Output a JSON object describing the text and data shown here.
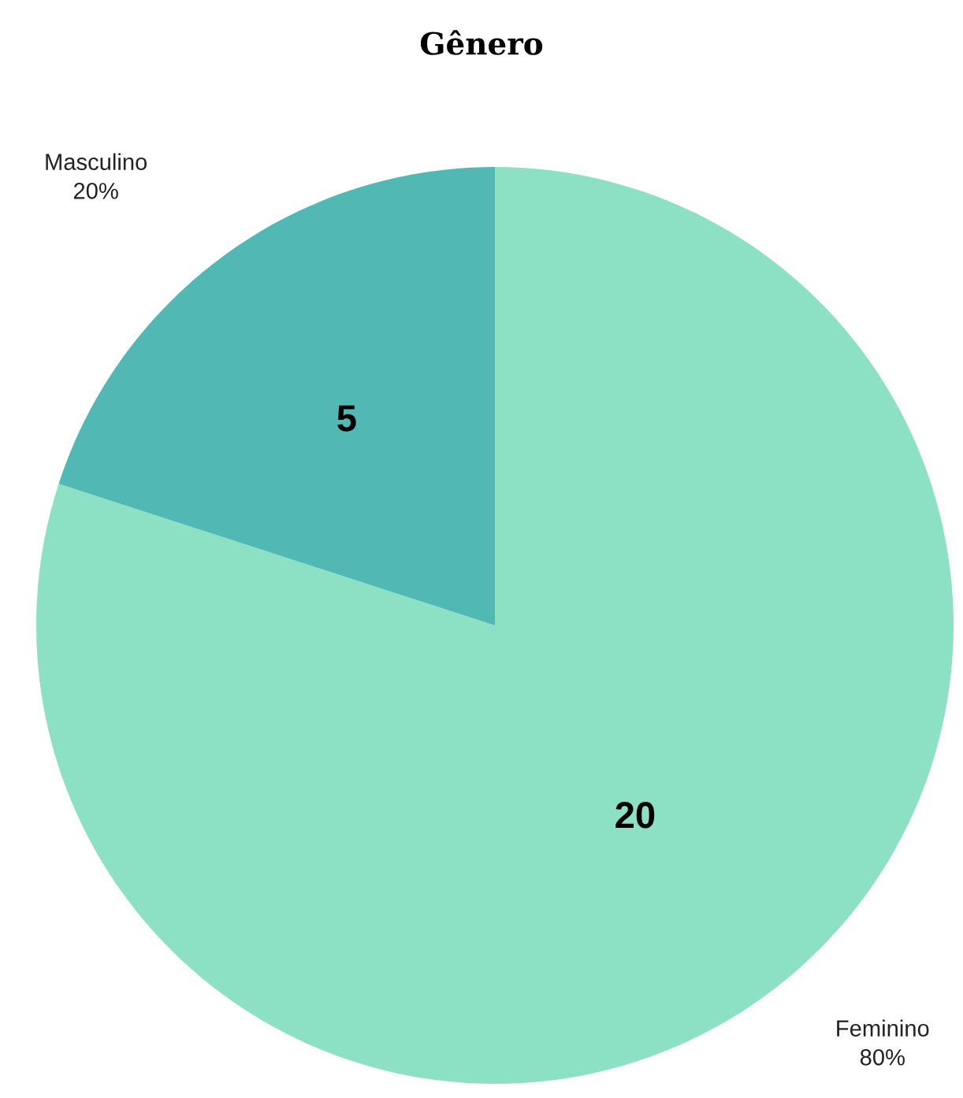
{
  "chart_data": {
    "type": "pie",
    "title": "Gênero",
    "categories": [
      "Feminino",
      "Masculino"
    ],
    "values": [
      80,
      20
    ],
    "colors": [
      "#8ce0c4",
      "#52b8b4"
    ],
    "value_labels": [
      "80%",
      "20%"
    ],
    "annotations": [
      {
        "text": "20",
        "x": "Feminino"
      },
      {
        "text": "5",
        "x": "Masculino"
      }
    ]
  }
}
